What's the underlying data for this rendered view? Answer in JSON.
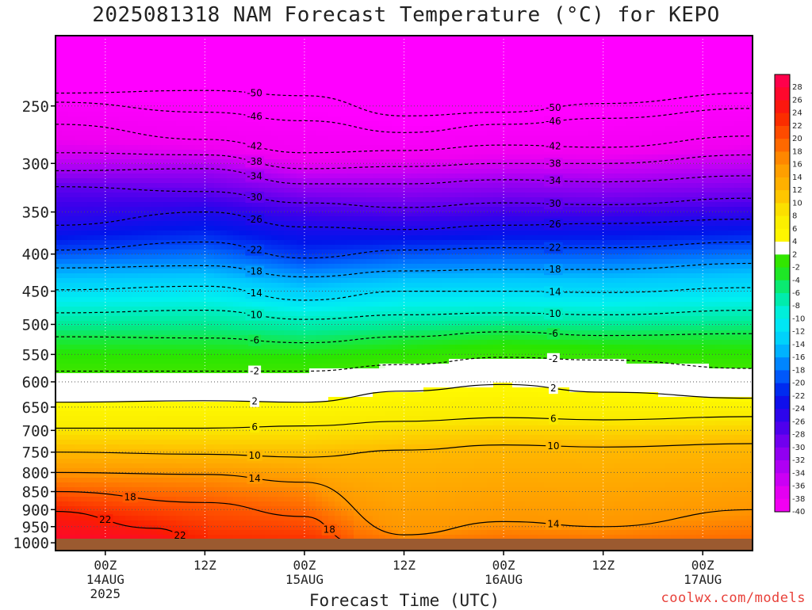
{
  "title": "2025081318 NAM Forecast Temperature (°C) for KEPO",
  "credit": "coolwx.com/models",
  "chart_data": {
    "type": "heatmap",
    "title": "2025081318 NAM Forecast Temperature (°C) for KEPO",
    "xlabel": "Forecast Time (UTC)",
    "ylabel": "",
    "y_scale": "log",
    "y_axis": "pressure (hPa), decreasing upward",
    "ylim": [
      1025,
      200
    ],
    "xlim": [
      "2025-08-13 18Z",
      "2025-08-17 06Z"
    ],
    "grid": true,
    "y_ticks": [
      250,
      300,
      350,
      400,
      450,
      500,
      550,
      600,
      650,
      700,
      750,
      800,
      850,
      900,
      950,
      1000
    ],
    "x_ticks": [
      {
        "time": "2025-08-14 00Z",
        "label": "00Z",
        "sub": "14AUG",
        "sub2": "2025"
      },
      {
        "time": "2025-08-14 12Z",
        "label": "12Z",
        "sub": "",
        "sub2": ""
      },
      {
        "time": "2025-08-15 00Z",
        "label": "00Z",
        "sub": "15AUG",
        "sub2": ""
      },
      {
        "time": "2025-08-15 12Z",
        "label": "12Z",
        "sub": "",
        "sub2": ""
      },
      {
        "time": "2025-08-16 00Z",
        "label": "00Z",
        "sub": "16AUG",
        "sub2": ""
      },
      {
        "time": "2025-08-16 12Z",
        "label": "12Z",
        "sub": "",
        "sub2": ""
      },
      {
        "time": "2025-08-17 00Z",
        "label": "00Z",
        "sub": "17AUG",
        "sub2": ""
      }
    ],
    "color_scale": {
      "levels": [
        28,
        26,
        24,
        22,
        20,
        18,
        16,
        14,
        12,
        10,
        8,
        6,
        4,
        2,
        -2,
        -4,
        -6,
        -8,
        -10,
        -12,
        -14,
        -16,
        -18,
        -20,
        -22,
        -24,
        -26,
        -28,
        -30,
        -32,
        -34,
        -36,
        -38,
        -40
      ],
      "labels": [
        "28",
        "26",
        "24",
        "22",
        "20",
        "18",
        "16",
        "14",
        "12",
        "10",
        "8",
        "6",
        "4",
        "2",
        "-2",
        "-4",
        "-6",
        "-8",
        "-10",
        "-12",
        "-14",
        "-16",
        "-18",
        "-20",
        "-22",
        "-24",
        "-26",
        "-28",
        "-30",
        "-32",
        "-34",
        "-36",
        "-38",
        "-40"
      ]
    },
    "series": [
      {
        "level": -50,
        "values": [
          {
            "x": "2025-08-13 18Z",
            "y": 240
          },
          {
            "x": "2025-08-14 12Z",
            "y": 238
          },
          {
            "x": "2025-08-15 00Z",
            "y": 242
          },
          {
            "x": "2025-08-15 12Z",
            "y": 258
          },
          {
            "x": "2025-08-16 00Z",
            "y": 255
          },
          {
            "x": "2025-08-16 12Z",
            "y": 248
          },
          {
            "x": "2025-08-17 06Z",
            "y": 240
          }
        ]
      },
      {
        "level": -46,
        "values": [
          {
            "x": "2025-08-13 18Z",
            "y": 247
          },
          {
            "x": "2025-08-14 12Z",
            "y": 255
          },
          {
            "x": "2025-08-15 00Z",
            "y": 262
          },
          {
            "x": "2025-08-15 12Z",
            "y": 272
          },
          {
            "x": "2025-08-16 00Z",
            "y": 265
          },
          {
            "x": "2025-08-16 12Z",
            "y": 260
          },
          {
            "x": "2025-08-17 06Z",
            "y": 252
          }
        ]
      },
      {
        "level": -42,
        "values": [
          {
            "x": "2025-08-13 18Z",
            "y": 265
          },
          {
            "x": "2025-08-14 12Z",
            "y": 278
          },
          {
            "x": "2025-08-15 00Z",
            "y": 290
          },
          {
            "x": "2025-08-15 12Z",
            "y": 288
          },
          {
            "x": "2025-08-16 00Z",
            "y": 283
          },
          {
            "x": "2025-08-16 12Z",
            "y": 285
          },
          {
            "x": "2025-08-17 06Z",
            "y": 275
          }
        ]
      },
      {
        "level": -38,
        "values": [
          {
            "x": "2025-08-13 18Z",
            "y": 290
          },
          {
            "x": "2025-08-14 12Z",
            "y": 292
          },
          {
            "x": "2025-08-15 00Z",
            "y": 305
          },
          {
            "x": "2025-08-15 12Z",
            "y": 303
          },
          {
            "x": "2025-08-16 00Z",
            "y": 300
          },
          {
            "x": "2025-08-16 12Z",
            "y": 300
          },
          {
            "x": "2025-08-17 06Z",
            "y": 292
          }
        ]
      },
      {
        "level": -34,
        "values": [
          {
            "x": "2025-08-13 18Z",
            "y": 307
          },
          {
            "x": "2025-08-14 12Z",
            "y": 305
          },
          {
            "x": "2025-08-15 00Z",
            "y": 320
          },
          {
            "x": "2025-08-15 12Z",
            "y": 320
          },
          {
            "x": "2025-08-16 00Z",
            "y": 316
          },
          {
            "x": "2025-08-16 12Z",
            "y": 318
          },
          {
            "x": "2025-08-17 06Z",
            "y": 312
          }
        ]
      },
      {
        "level": -30,
        "values": [
          {
            "x": "2025-08-13 18Z",
            "y": 323
          },
          {
            "x": "2025-08-14 12Z",
            "y": 328
          },
          {
            "x": "2025-08-15 00Z",
            "y": 340
          },
          {
            "x": "2025-08-15 12Z",
            "y": 345
          },
          {
            "x": "2025-08-16 00Z",
            "y": 340
          },
          {
            "x": "2025-08-16 12Z",
            "y": 342
          },
          {
            "x": "2025-08-17 06Z",
            "y": 335
          }
        ]
      },
      {
        "level": -26,
        "values": [
          {
            "x": "2025-08-13 18Z",
            "y": 365
          },
          {
            "x": "2025-08-14 12Z",
            "y": 350
          },
          {
            "x": "2025-08-15 00Z",
            "y": 367
          },
          {
            "x": "2025-08-15 12Z",
            "y": 370
          },
          {
            "x": "2025-08-16 00Z",
            "y": 365
          },
          {
            "x": "2025-08-16 12Z",
            "y": 363
          },
          {
            "x": "2025-08-17 06Z",
            "y": 358
          }
        ]
      },
      {
        "level": -22,
        "values": [
          {
            "x": "2025-08-13 18Z",
            "y": 395
          },
          {
            "x": "2025-08-14 12Z",
            "y": 385
          },
          {
            "x": "2025-08-15 00Z",
            "y": 405
          },
          {
            "x": "2025-08-15 12Z",
            "y": 395
          },
          {
            "x": "2025-08-16 00Z",
            "y": 392
          },
          {
            "x": "2025-08-16 12Z",
            "y": 392
          },
          {
            "x": "2025-08-17 06Z",
            "y": 385
          }
        ]
      },
      {
        "level": -18,
        "values": [
          {
            "x": "2025-08-13 18Z",
            "y": 418
          },
          {
            "x": "2025-08-14 12Z",
            "y": 415
          },
          {
            "x": "2025-08-15 00Z",
            "y": 430
          },
          {
            "x": "2025-08-15 12Z",
            "y": 422
          },
          {
            "x": "2025-08-16 00Z",
            "y": 420
          },
          {
            "x": "2025-08-16 12Z",
            "y": 420
          },
          {
            "x": "2025-08-17 06Z",
            "y": 412
          }
        ]
      },
      {
        "level": -14,
        "values": [
          {
            "x": "2025-08-13 18Z",
            "y": 448
          },
          {
            "x": "2025-08-14 12Z",
            "y": 443
          },
          {
            "x": "2025-08-15 00Z",
            "y": 463
          },
          {
            "x": "2025-08-15 12Z",
            "y": 450
          },
          {
            "x": "2025-08-16 00Z",
            "y": 450
          },
          {
            "x": "2025-08-16 12Z",
            "y": 452
          },
          {
            "x": "2025-08-17 06Z",
            "y": 445
          }
        ]
      },
      {
        "level": -10,
        "values": [
          {
            "x": "2025-08-13 18Z",
            "y": 482
          },
          {
            "x": "2025-08-14 12Z",
            "y": 478
          },
          {
            "x": "2025-08-15 00Z",
            "y": 492
          },
          {
            "x": "2025-08-15 12Z",
            "y": 485
          },
          {
            "x": "2025-08-16 00Z",
            "y": 482
          },
          {
            "x": "2025-08-16 12Z",
            "y": 485
          },
          {
            "x": "2025-08-17 06Z",
            "y": 478
          }
        ]
      },
      {
        "level": -6,
        "values": [
          {
            "x": "2025-08-13 18Z",
            "y": 520
          },
          {
            "x": "2025-08-14 12Z",
            "y": 522
          },
          {
            "x": "2025-08-15 00Z",
            "y": 530
          },
          {
            "x": "2025-08-15 12Z",
            "y": 520
          },
          {
            "x": "2025-08-16 00Z",
            "y": 512
          },
          {
            "x": "2025-08-16 12Z",
            "y": 518
          },
          {
            "x": "2025-08-17 06Z",
            "y": 515
          }
        ]
      },
      {
        "level": -2,
        "values": [
          {
            "x": "2025-08-13 18Z",
            "y": 580
          },
          {
            "x": "2025-08-14 12Z",
            "y": 580
          },
          {
            "x": "2025-08-15 00Z",
            "y": 580
          },
          {
            "x": "2025-08-15 12Z",
            "y": 568
          },
          {
            "x": "2025-08-16 00Z",
            "y": 555
          },
          {
            "x": "2025-08-16 12Z",
            "y": 560
          },
          {
            "x": "2025-08-17 06Z",
            "y": 575
          }
        ]
      },
      {
        "level": 2,
        "values": [
          {
            "x": "2025-08-13 18Z",
            "y": 640
          },
          {
            "x": "2025-08-14 12Z",
            "y": 637
          },
          {
            "x": "2025-08-15 00Z",
            "y": 640
          },
          {
            "x": "2025-08-15 12Z",
            "y": 618
          },
          {
            "x": "2025-08-16 00Z",
            "y": 605
          },
          {
            "x": "2025-08-16 12Z",
            "y": 620
          },
          {
            "x": "2025-08-17 06Z",
            "y": 632
          }
        ]
      },
      {
        "level": 6,
        "values": [
          {
            "x": "2025-08-13 18Z",
            "y": 695
          },
          {
            "x": "2025-08-14 12Z",
            "y": 695
          },
          {
            "x": "2025-08-15 00Z",
            "y": 690
          },
          {
            "x": "2025-08-15 12Z",
            "y": 680
          },
          {
            "x": "2025-08-16 00Z",
            "y": 672
          },
          {
            "x": "2025-08-16 12Z",
            "y": 677
          },
          {
            "x": "2025-08-17 06Z",
            "y": 670
          }
        ]
      },
      {
        "level": 10,
        "values": [
          {
            "x": "2025-08-13 18Z",
            "y": 750
          },
          {
            "x": "2025-08-14 12Z",
            "y": 755
          },
          {
            "x": "2025-08-15 00Z",
            "y": 762
          },
          {
            "x": "2025-08-15 12Z",
            "y": 745
          },
          {
            "x": "2025-08-16 00Z",
            "y": 733
          },
          {
            "x": "2025-08-16 12Z",
            "y": 738
          },
          {
            "x": "2025-08-17 06Z",
            "y": 730
          }
        ]
      },
      {
        "level": 14,
        "values": [
          {
            "x": "2025-08-13 18Z",
            "y": 800
          },
          {
            "x": "2025-08-14 12Z",
            "y": 805
          },
          {
            "x": "2025-08-15 00Z",
            "y": 825
          },
          {
            "x": "2025-08-15 12Z",
            "y": 975
          },
          {
            "x": "2025-08-16 00Z",
            "y": 935
          },
          {
            "x": "2025-08-16 12Z",
            "y": 950
          },
          {
            "x": "2025-08-17 06Z",
            "y": 900
          }
        ]
      },
      {
        "level": 18,
        "values": [
          {
            "x": "2025-08-13 18Z",
            "y": 850
          },
          {
            "x": "2025-08-14 12Z",
            "y": 880
          },
          {
            "x": "2025-08-15 00Z",
            "y": 920
          },
          {
            "x": "2025-08-15 06Z",
            "y": 1000
          }
        ]
      },
      {
        "level": 22,
        "values": [
          {
            "x": "2025-08-13 18Z",
            "y": 905
          },
          {
            "x": "2025-08-14 06Z",
            "y": 955
          },
          {
            "x": "2025-08-14 12Z",
            "y": 1000
          }
        ]
      }
    ]
  }
}
